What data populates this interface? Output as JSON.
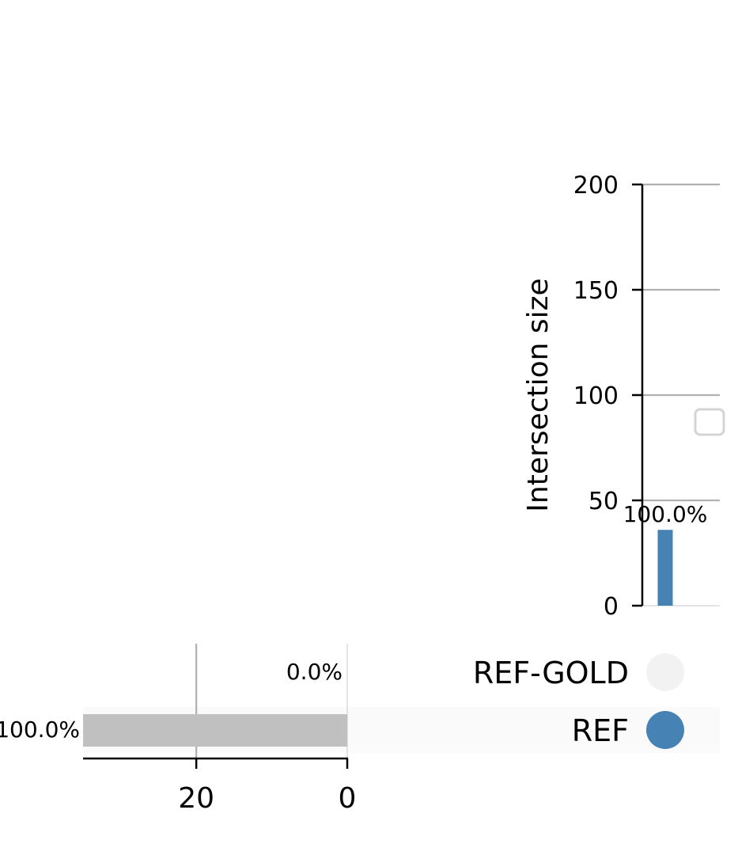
{
  "chart_data": [
    {
      "type": "bar",
      "role": "intersection-size",
      "ylabel": "Intersection size",
      "ylim": [
        0,
        200
      ],
      "yticks": [
        "0",
        "50",
        "100",
        "150",
        "200"
      ],
      "grid": true,
      "bars": [
        {
          "sets": [
            "REF"
          ],
          "value": 36,
          "label": "100.0%"
        }
      ],
      "bar_color": "#4682b4"
    },
    {
      "type": "bar",
      "orientation": "horizontal",
      "role": "set-size",
      "xlim": [
        35,
        0
      ],
      "xticks": [
        "20",
        "0"
      ],
      "grid": true,
      "bar_color": "#c0c0c0",
      "bars": [
        {
          "set": "REF-GOLD",
          "value": 0,
          "label": "0.0%"
        },
        {
          "set": "REF",
          "value": 36,
          "label": "100.0%"
        }
      ]
    }
  ],
  "matrix": {
    "sets": [
      "REF-GOLD",
      "REF"
    ],
    "inactive_color": "#f2f2f2",
    "active_color": "#4682b4",
    "row_shade_color": "#fafafa"
  },
  "legend": {
    "entries": [],
    "placement": "right"
  }
}
